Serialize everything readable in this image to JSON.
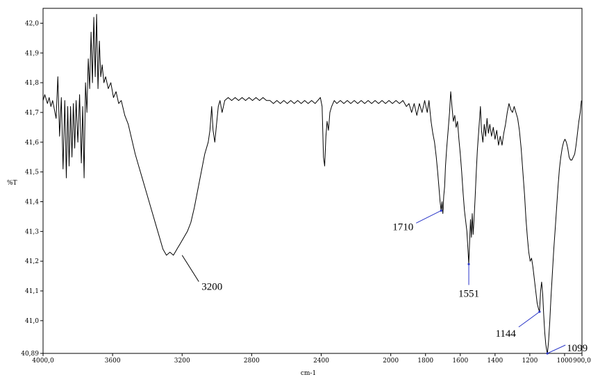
{
  "chart_data": {
    "type": "line",
    "title": "",
    "xlabel": "cm-1",
    "ylabel": "%T",
    "x_reversed": true,
    "xlim": [
      4000,
      900
    ],
    "ylim": [
      40.89,
      42.05
    ],
    "grid": false,
    "x_ticks": [
      {
        "value": 4000,
        "label": "4000,0"
      },
      {
        "value": 3600,
        "label": "3600"
      },
      {
        "value": 3200,
        "label": "3200"
      },
      {
        "value": 2800,
        "label": "2800"
      },
      {
        "value": 2400,
        "label": "2400"
      },
      {
        "value": 2000,
        "label": "2000"
      },
      {
        "value": 1800,
        "label": "1800"
      },
      {
        "value": 1600,
        "label": "1600"
      },
      {
        "value": 1400,
        "label": "1400"
      },
      {
        "value": 1200,
        "label": "1200"
      },
      {
        "value": 1000,
        "label": "1000"
      },
      {
        "value": 900,
        "label": "900,0"
      }
    ],
    "y_ticks": [
      {
        "value": 40.89,
        "label": "40,89"
      },
      {
        "value": 41.0,
        "label": "41,0"
      },
      {
        "value": 41.1,
        "label": "41,1"
      },
      {
        "value": 41.2,
        "label": "41,2"
      },
      {
        "value": 41.3,
        "label": "41,3"
      },
      {
        "value": 41.4,
        "label": "41,4"
      },
      {
        "value": 41.5,
        "label": "41,5"
      },
      {
        "value": 41.6,
        "label": "41,6"
      },
      {
        "value": 41.7,
        "label": "41,7"
      },
      {
        "value": 41.8,
        "label": "41,8"
      },
      {
        "value": 41.9,
        "label": "41,9"
      },
      {
        "value": 42.0,
        "label": "42,0"
      }
    ],
    "series": [
      {
        "color": "#000000",
        "points": [
          [
            4000,
            41.74
          ],
          [
            3990,
            41.76
          ],
          [
            3975,
            41.73
          ],
          [
            3965,
            41.75
          ],
          [
            3955,
            41.72
          ],
          [
            3945,
            41.74
          ],
          [
            3935,
            41.71
          ],
          [
            3925,
            41.68
          ],
          [
            3915,
            41.82
          ],
          [
            3905,
            41.62
          ],
          [
            3895,
            41.75
          ],
          [
            3885,
            41.51
          ],
          [
            3875,
            41.74
          ],
          [
            3866,
            41.48
          ],
          [
            3858,
            41.72
          ],
          [
            3850,
            41.52
          ],
          [
            3842,
            41.72
          ],
          [
            3834,
            41.55
          ],
          [
            3826,
            41.73
          ],
          [
            3818,
            41.58
          ],
          [
            3810,
            41.74
          ],
          [
            3800,
            41.6
          ],
          [
            3790,
            41.76
          ],
          [
            3780,
            41.53
          ],
          [
            3772,
            41.72
          ],
          [
            3764,
            41.48
          ],
          [
            3756,
            41.8
          ],
          [
            3748,
            41.7
          ],
          [
            3740,
            41.88
          ],
          [
            3732,
            41.78
          ],
          [
            3724,
            41.97
          ],
          [
            3716,
            41.8
          ],
          [
            3708,
            42.02
          ],
          [
            3700,
            41.82
          ],
          [
            3692,
            42.03
          ],
          [
            3684,
            41.78
          ],
          [
            3676,
            41.94
          ],
          [
            3668,
            41.82
          ],
          [
            3660,
            41.86
          ],
          [
            3650,
            41.8
          ],
          [
            3640,
            41.82
          ],
          [
            3625,
            41.78
          ],
          [
            3610,
            41.8
          ],
          [
            3595,
            41.75
          ],
          [
            3580,
            41.77
          ],
          [
            3565,
            41.73
          ],
          [
            3550,
            41.74
          ],
          [
            3530,
            41.69
          ],
          [
            3510,
            41.66
          ],
          [
            3490,
            41.61
          ],
          [
            3470,
            41.56
          ],
          [
            3450,
            41.52
          ],
          [
            3430,
            41.48
          ],
          [
            3410,
            41.44
          ],
          [
            3390,
            41.4
          ],
          [
            3370,
            41.36
          ],
          [
            3350,
            41.32
          ],
          [
            3330,
            41.28
          ],
          [
            3310,
            41.24
          ],
          [
            3290,
            41.22
          ],
          [
            3270,
            41.23
          ],
          [
            3250,
            41.22
          ],
          [
            3230,
            41.24
          ],
          [
            3210,
            41.26
          ],
          [
            3190,
            41.28
          ],
          [
            3170,
            41.3
          ],
          [
            3150,
            41.33
          ],
          [
            3130,
            41.38
          ],
          [
            3110,
            41.44
          ],
          [
            3090,
            41.5
          ],
          [
            3070,
            41.56
          ],
          [
            3050,
            41.6
          ],
          [
            3040,
            41.64
          ],
          [
            3030,
            41.72
          ],
          [
            3022,
            41.64
          ],
          [
            3012,
            41.6
          ],
          [
            3002,
            41.66
          ],
          [
            2992,
            41.72
          ],
          [
            2982,
            41.74
          ],
          [
            2970,
            41.7
          ],
          [
            2955,
            41.74
          ],
          [
            2935,
            41.75
          ],
          [
            2915,
            41.74
          ],
          [
            2895,
            41.75
          ],
          [
            2875,
            41.74
          ],
          [
            2855,
            41.75
          ],
          [
            2835,
            41.74
          ],
          [
            2815,
            41.75
          ],
          [
            2795,
            41.74
          ],
          [
            2775,
            41.75
          ],
          [
            2755,
            41.74
          ],
          [
            2735,
            41.75
          ],
          [
            2715,
            41.74
          ],
          [
            2695,
            41.74
          ],
          [
            2675,
            41.73
          ],
          [
            2655,
            41.74
          ],
          [
            2635,
            41.73
          ],
          [
            2615,
            41.74
          ],
          [
            2595,
            41.73
          ],
          [
            2575,
            41.74
          ],
          [
            2555,
            41.73
          ],
          [
            2535,
            41.74
          ],
          [
            2515,
            41.73
          ],
          [
            2495,
            41.74
          ],
          [
            2475,
            41.73
          ],
          [
            2455,
            41.74
          ],
          [
            2435,
            41.73
          ],
          [
            2420,
            41.74
          ],
          [
            2405,
            41.75
          ],
          [
            2395,
            41.72
          ],
          [
            2387,
            41.55
          ],
          [
            2380,
            41.52
          ],
          [
            2373,
            41.62
          ],
          [
            2366,
            41.67
          ],
          [
            2358,
            41.64
          ],
          [
            2350,
            41.7
          ],
          [
            2340,
            41.72
          ],
          [
            2325,
            41.74
          ],
          [
            2310,
            41.73
          ],
          [
            2290,
            41.74
          ],
          [
            2270,
            41.73
          ],
          [
            2250,
            41.74
          ],
          [
            2230,
            41.73
          ],
          [
            2210,
            41.74
          ],
          [
            2190,
            41.73
          ],
          [
            2170,
            41.74
          ],
          [
            2150,
            41.73
          ],
          [
            2130,
            41.74
          ],
          [
            2110,
            41.73
          ],
          [
            2090,
            41.74
          ],
          [
            2070,
            41.73
          ],
          [
            2050,
            41.74
          ],
          [
            2030,
            41.73
          ],
          [
            2010,
            41.74
          ],
          [
            1990,
            41.73
          ],
          [
            1970,
            41.74
          ],
          [
            1950,
            41.73
          ],
          [
            1930,
            41.74
          ],
          [
            1910,
            41.72
          ],
          [
            1895,
            41.73
          ],
          [
            1880,
            41.7
          ],
          [
            1865,
            41.73
          ],
          [
            1850,
            41.69
          ],
          [
            1835,
            41.73
          ],
          [
            1820,
            41.7
          ],
          [
            1805,
            41.74
          ],
          [
            1790,
            41.7
          ],
          [
            1780,
            41.74
          ],
          [
            1768,
            41.67
          ],
          [
            1758,
            41.63
          ],
          [
            1748,
            41.6
          ],
          [
            1738,
            41.55
          ],
          [
            1730,
            41.5
          ],
          [
            1723,
            41.45
          ],
          [
            1716,
            41.4
          ],
          [
            1710,
            41.37
          ],
          [
            1705,
            41.4
          ],
          [
            1700,
            41.36
          ],
          [
            1695,
            41.42
          ],
          [
            1690,
            41.45
          ],
          [
            1685,
            41.52
          ],
          [
            1678,
            41.58
          ],
          [
            1670,
            41.64
          ],
          [
            1662,
            41.7
          ],
          [
            1655,
            41.77
          ],
          [
            1648,
            41.72
          ],
          [
            1640,
            41.67
          ],
          [
            1632,
            41.69
          ],
          [
            1624,
            41.65
          ],
          [
            1616,
            41.67
          ],
          [
            1608,
            41.61
          ],
          [
            1600,
            41.56
          ],
          [
            1592,
            41.5
          ],
          [
            1584,
            41.43
          ],
          [
            1576,
            41.37
          ],
          [
            1568,
            41.33
          ],
          [
            1562,
            41.3
          ],
          [
            1556,
            41.24
          ],
          [
            1551,
            41.19
          ],
          [
            1546,
            41.27
          ],
          [
            1541,
            41.34
          ],
          [
            1536,
            41.28
          ],
          [
            1531,
            41.36
          ],
          [
            1526,
            41.29
          ],
          [
            1520,
            41.35
          ],
          [
            1514,
            41.42
          ],
          [
            1508,
            41.5
          ],
          [
            1502,
            41.57
          ],
          [
            1496,
            41.62
          ],
          [
            1490,
            41.67
          ],
          [
            1484,
            41.72
          ],
          [
            1478,
            41.64
          ],
          [
            1470,
            41.6
          ],
          [
            1462,
            41.66
          ],
          [
            1454,
            41.62
          ],
          [
            1446,
            41.68
          ],
          [
            1438,
            41.63
          ],
          [
            1430,
            41.66
          ],
          [
            1420,
            41.62
          ],
          [
            1410,
            41.65
          ],
          [
            1400,
            41.61
          ],
          [
            1390,
            41.64
          ],
          [
            1380,
            41.59
          ],
          [
            1370,
            41.62
          ],
          [
            1360,
            41.59
          ],
          [
            1350,
            41.63
          ],
          [
            1340,
            41.66
          ],
          [
            1330,
            41.7
          ],
          [
            1320,
            41.73
          ],
          [
            1310,
            41.71
          ],
          [
            1300,
            41.7
          ],
          [
            1290,
            41.72
          ],
          [
            1280,
            41.7
          ],
          [
            1270,
            41.68
          ],
          [
            1260,
            41.64
          ],
          [
            1250,
            41.58
          ],
          [
            1240,
            41.5
          ],
          [
            1230,
            41.42
          ],
          [
            1222,
            41.34
          ],
          [
            1214,
            41.28
          ],
          [
            1206,
            41.23
          ],
          [
            1198,
            41.2
          ],
          [
            1190,
            41.21
          ],
          [
            1182,
            41.18
          ],
          [
            1174,
            41.14
          ],
          [
            1166,
            41.1
          ],
          [
            1158,
            41.06
          ],
          [
            1150,
            41.04
          ],
          [
            1144,
            41.03
          ],
          [
            1138,
            41.1
          ],
          [
            1132,
            41.13
          ],
          [
            1126,
            41.09
          ],
          [
            1120,
            41.02
          ],
          [
            1114,
            40.96
          ],
          [
            1108,
            40.92
          ],
          [
            1103,
            40.9
          ],
          [
            1099,
            40.89
          ],
          [
            1092,
            40.93
          ],
          [
            1085,
            41.0
          ],
          [
            1078,
            41.08
          ],
          [
            1070,
            41.16
          ],
          [
            1062,
            41.24
          ],
          [
            1054,
            41.31
          ],
          [
            1046,
            41.38
          ],
          [
            1038,
            41.45
          ],
          [
            1030,
            41.51
          ],
          [
            1022,
            41.55
          ],
          [
            1014,
            41.58
          ],
          [
            1006,
            41.6
          ],
          [
            998,
            41.61
          ],
          [
            990,
            41.6
          ],
          [
            982,
            41.58
          ],
          [
            974,
            41.55
          ],
          [
            966,
            41.54
          ],
          [
            958,
            41.54
          ],
          [
            950,
            41.55
          ],
          [
            942,
            41.56
          ],
          [
            934,
            41.59
          ],
          [
            926,
            41.63
          ],
          [
            918,
            41.67
          ],
          [
            910,
            41.7
          ],
          [
            903,
            41.74
          ]
        ]
      }
    ],
    "annotations": [
      {
        "label": "3200",
        "x": 3200,
        "y": 41.22,
        "line_color": "#000000"
      },
      {
        "label": "1710",
        "x": 1710,
        "y": 41.37,
        "line_color": "#2a36c8"
      },
      {
        "label": "1551",
        "x": 1551,
        "y": 41.19,
        "line_color": "#2a36c8"
      },
      {
        "label": "1144",
        "x": 1144,
        "y": 41.03,
        "line_color": "#2a36c8"
      },
      {
        "label": "1099",
        "x": 1099,
        "y": 40.89,
        "line_color": "#2a36c8"
      }
    ]
  }
}
